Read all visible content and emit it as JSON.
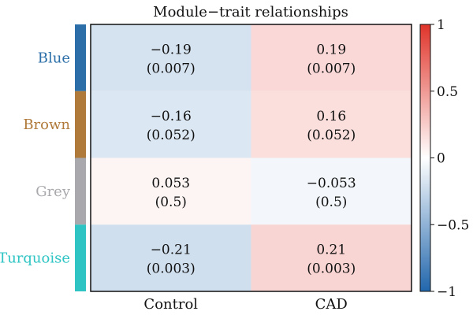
{
  "chart_data": {
    "type": "heatmap",
    "title": "Module−trait relationships",
    "rows": [
      {
        "label": "Blue",
        "color": "#2c6fa8"
      },
      {
        "label": "Brown",
        "color": "#b07a3a"
      },
      {
        "label": "Grey",
        "color": "#a9a9ad"
      },
      {
        "label": "Turquoise",
        "color": "#2ec4c4"
      }
    ],
    "columns": [
      "Control",
      "CAD"
    ],
    "values": [
      [
        -0.19,
        0.19
      ],
      [
        -0.16,
        0.16
      ],
      [
        0.053,
        -0.053
      ],
      [
        -0.21,
        0.21
      ]
    ],
    "cell_text": [
      [
        [
          "−0.19",
          "(0.007)"
        ],
        [
          "0.19",
          "(0.007)"
        ]
      ],
      [
        [
          "−0.16",
          "(0.052)"
        ],
        [
          "0.16",
          "(0.052)"
        ]
      ],
      [
        [
          "0.053",
          "(0.5)"
        ],
        [
          "−0.053",
          "(0.5)"
        ]
      ],
      [
        [
          "−0.21",
          "(0.003)"
        ],
        [
          "0.21",
          "(0.003)"
        ]
      ]
    ],
    "colorbar": {
      "min": -1,
      "max": 1,
      "ticks": [
        1,
        0.5,
        0,
        -0.5,
        -1
      ],
      "tick_labels": [
        "1",
        "0.5",
        "0",
        "−0.5",
        "−1"
      ],
      "color_low": "#2166ac",
      "color_mid": "#ffffff",
      "color_high": "#e0342a"
    }
  }
}
